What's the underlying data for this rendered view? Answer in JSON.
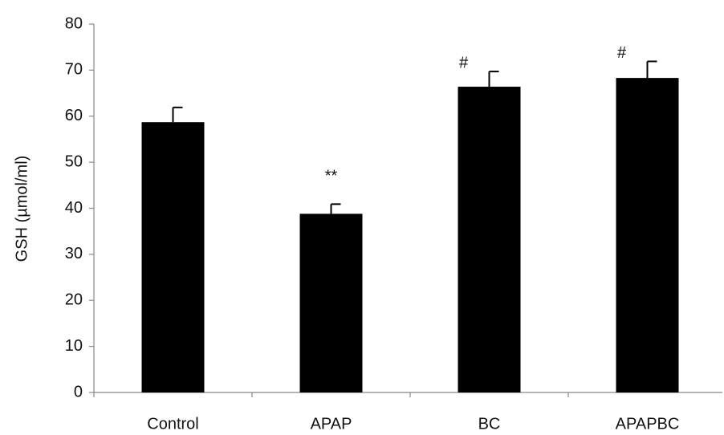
{
  "chart_data": {
    "type": "bar",
    "ylabel": "GSH (µmol/ml)",
    "categories": [
      "Control",
      "APAP",
      "BC",
      "APAPBC"
    ],
    "values": [
      58.7,
      38.8,
      66.4,
      68.3
    ],
    "errors": [
      3.2,
      2.1,
      3.3,
      3.6
    ],
    "annotations": [
      null,
      "**",
      "#",
      "#"
    ],
    "color": "#000000",
    "ylim": [
      0,
      80
    ],
    "yticks": [
      0,
      10,
      20,
      30,
      40,
      50,
      60,
      70,
      80
    ],
    "grid": false
  }
}
